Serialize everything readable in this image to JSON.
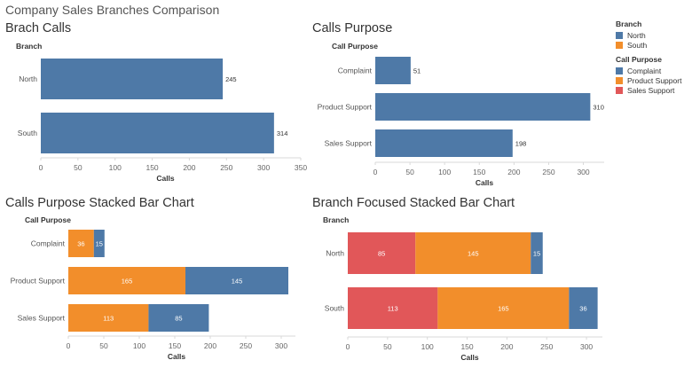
{
  "dashboard_title": "Company Sales Branches Comparison",
  "colors": {
    "north": "#4e79a7",
    "south": "#f28e2b",
    "sales_support": "#e15759"
  },
  "legend": {
    "branch": {
      "title": "Branch",
      "items": [
        {
          "label": "North",
          "color": "#4e79a7"
        },
        {
          "label": "South",
          "color": "#f28e2b"
        }
      ]
    },
    "call_purpose": {
      "title": "Call Purpose",
      "items": [
        {
          "label": "Complaint",
          "color": "#4e79a7"
        },
        {
          "label": "Product Support",
          "color": "#f28e2b"
        },
        {
          "label": "Sales Support",
          "color": "#e15759"
        }
      ]
    }
  },
  "chart_data": [
    {
      "id": "brach_calls",
      "type": "bar",
      "title": "Brach Calls",
      "dim_header": "Branch",
      "categories": [
        "North",
        "South"
      ],
      "values": [
        245,
        314
      ],
      "xlabel": "Calls",
      "xlim": [
        0,
        350
      ],
      "ticks": [
        0,
        50,
        100,
        150,
        200,
        250,
        300,
        350
      ],
      "bar_color": "#4e79a7"
    },
    {
      "id": "calls_purpose",
      "type": "bar",
      "title": "Calls Purpose",
      "dim_header": "Call Purpose",
      "categories": [
        "Complaint",
        "Product Support",
        "Sales Support"
      ],
      "values": [
        51,
        310,
        198
      ],
      "xlabel": "Calls",
      "xlim": [
        0,
        330
      ],
      "ticks": [
        0,
        50,
        100,
        150,
        200,
        250,
        300
      ],
      "bar_color": "#4e79a7"
    },
    {
      "id": "calls_purpose_stacked",
      "type": "bar",
      "stacked": true,
      "title": "Calls Purpose Stacked Bar Chart",
      "dim_header": "Call Purpose",
      "categories": [
        "Complaint",
        "Product Support",
        "Sales Support"
      ],
      "series": [
        {
          "name": "South",
          "values": [
            36,
            165,
            113
          ],
          "color": "#f28e2b"
        },
        {
          "name": "North",
          "values": [
            15,
            145,
            85
          ],
          "color": "#4e79a7"
        }
      ],
      "xlabel": "Calls",
      "xlim": [
        0,
        320
      ],
      "ticks": [
        0,
        50,
        100,
        150,
        200,
        250,
        300
      ]
    },
    {
      "id": "branch_focused_stacked",
      "type": "bar",
      "stacked": true,
      "title": "Branch Focused Stacked Bar Chart",
      "dim_header": "Branch",
      "categories": [
        "North",
        "South"
      ],
      "series": [
        {
          "name": "Sales Support",
          "values": [
            85,
            113
          ],
          "color": "#e15759"
        },
        {
          "name": "Product Support",
          "values": [
            145,
            165
          ],
          "color": "#f28e2b"
        },
        {
          "name": "Complaint",
          "values": [
            15,
            36
          ],
          "color": "#4e79a7"
        }
      ],
      "xlabel": "Calls",
      "xlim": [
        0,
        320
      ],
      "ticks": [
        0,
        50,
        100,
        150,
        200,
        250,
        300
      ]
    }
  ]
}
